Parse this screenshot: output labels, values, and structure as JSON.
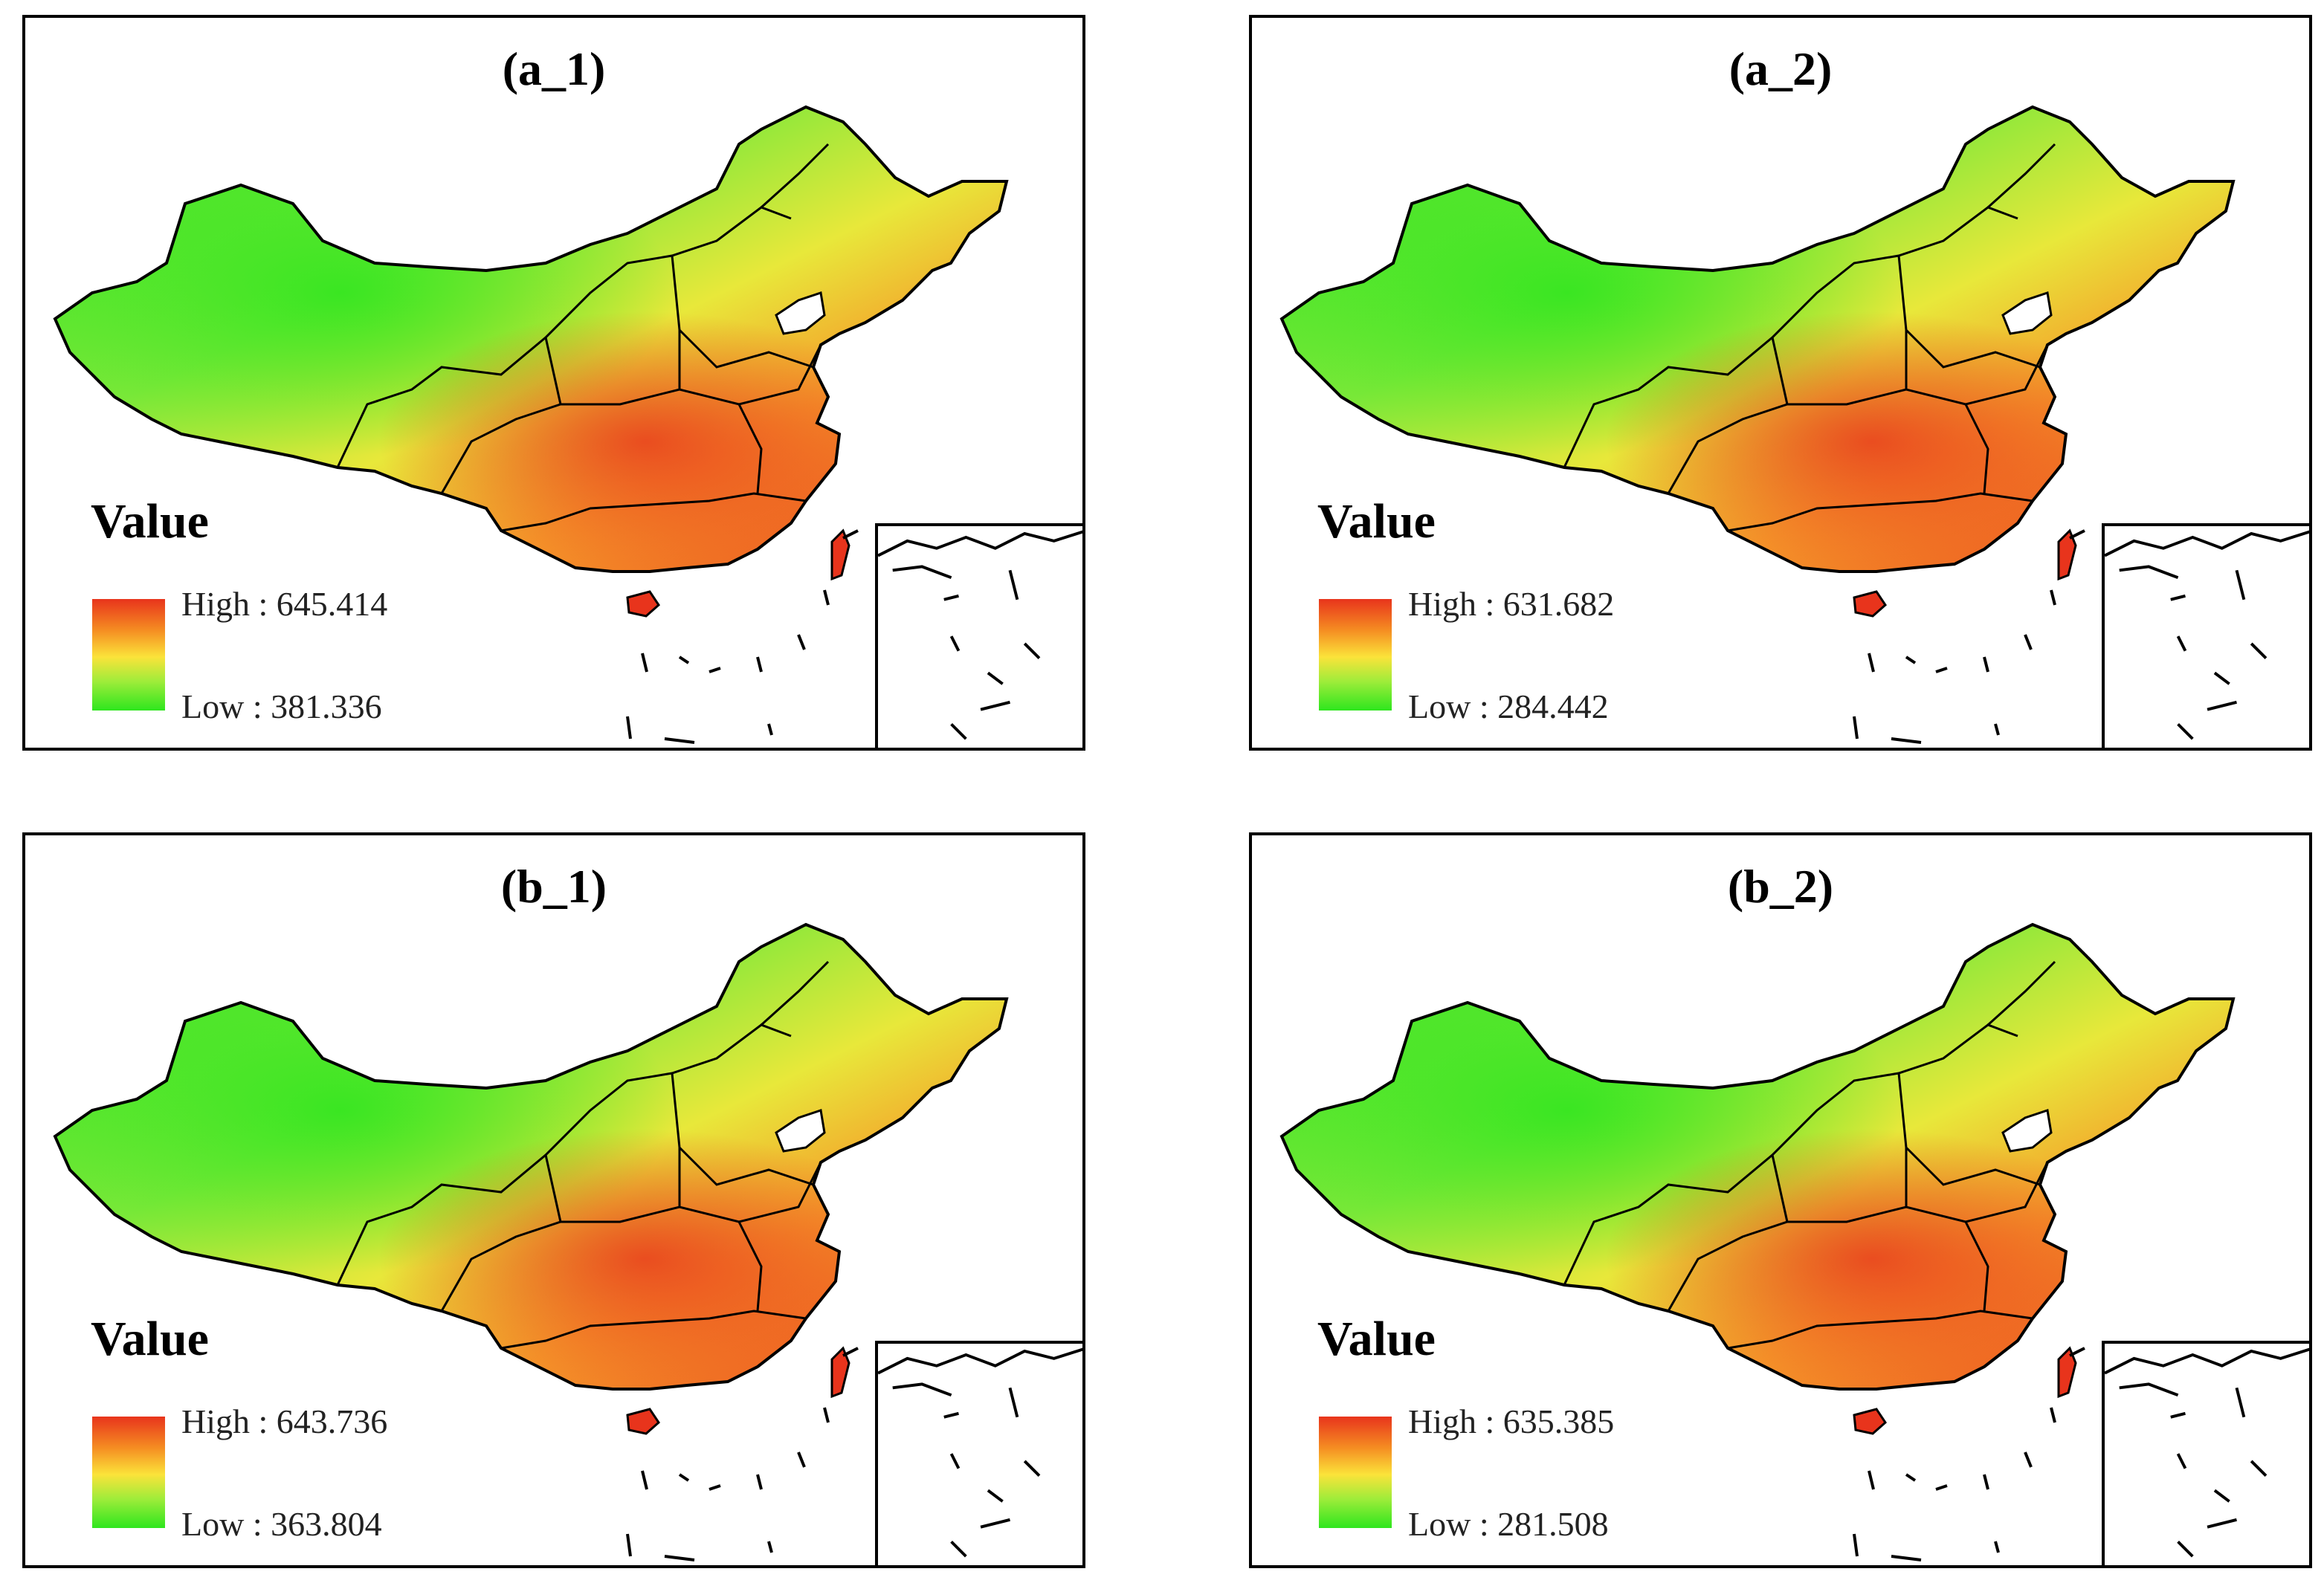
{
  "legend_title": "Value",
  "panels": [
    {
      "label": "(a_1)",
      "high": "High : 645.414",
      "low": "Low : 381.336"
    },
    {
      "label": "(a_2)",
      "high": "High : 631.682",
      "low": "Low : 284.442"
    },
    {
      "label": "(b_1)",
      "high": "High : 643.736",
      "low": "Low : 363.804"
    },
    {
      "label": "(b_2)",
      "high": "High : 635.385",
      "low": "Low : 281.508"
    }
  ],
  "colors": {
    "high": "#e8341c",
    "mid": "#fbe33a",
    "low": "#2ee61e"
  }
}
